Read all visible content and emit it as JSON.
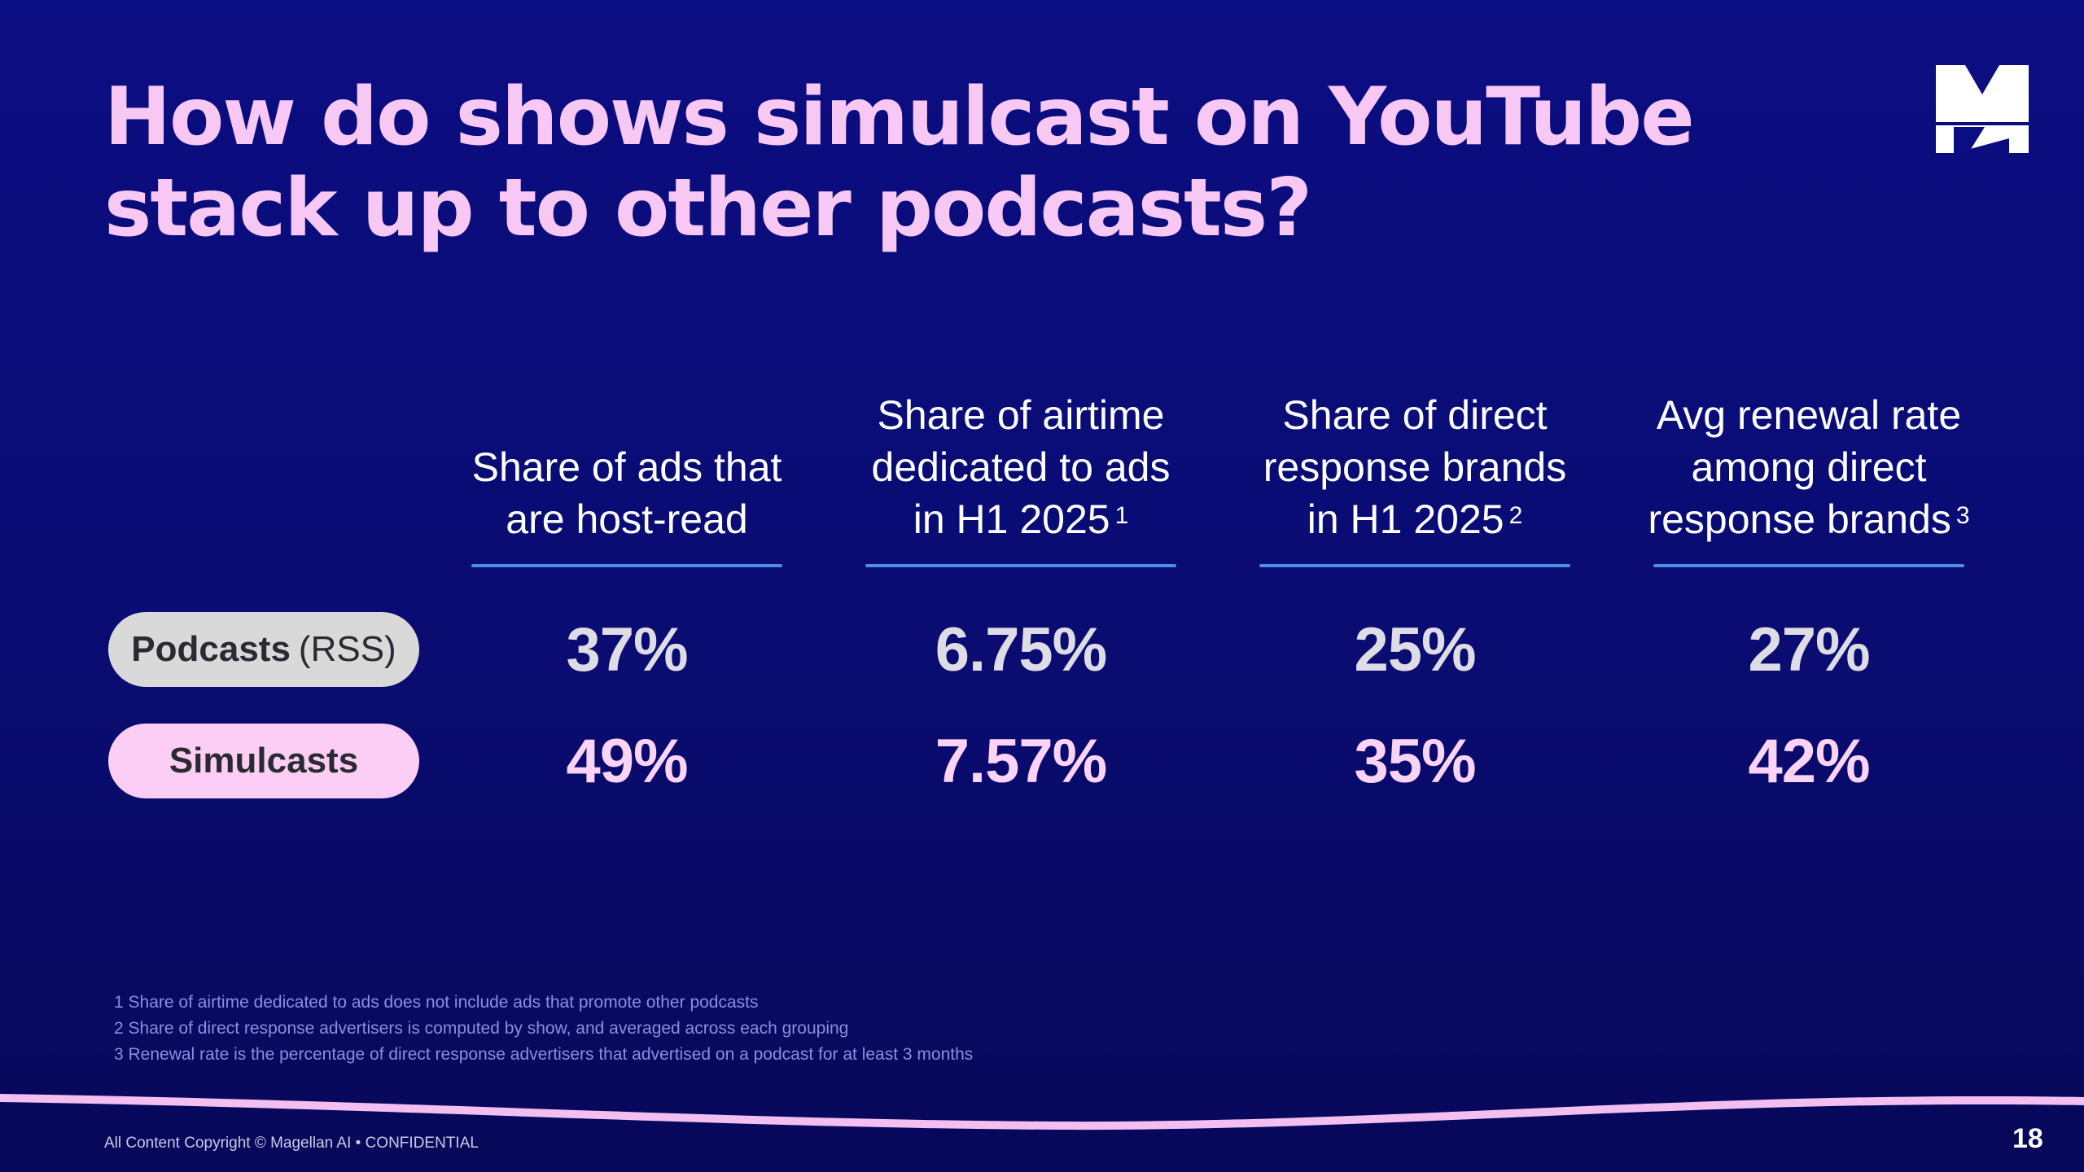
{
  "slide": {
    "title": "How do shows simulcast on YouTube stack up to other podcasts?",
    "page_number": "18",
    "copyright": "All Content Copyright © Magellan AI • CONFIDENTIAL"
  },
  "columns": [
    {
      "lines": [
        "Share of ads that",
        "are host-read"
      ],
      "sup": ""
    },
    {
      "lines": [
        "Share of airtime",
        "dedicated to ads",
        "in H1 2025"
      ],
      "sup": "1"
    },
    {
      "lines": [
        "Share of direct",
        "response brands",
        "in H1 2025"
      ],
      "sup": "2"
    },
    {
      "lines": [
        "Avg renewal rate",
        "among direct",
        "response brands"
      ],
      "sup": "3"
    }
  ],
  "rows": {
    "podcasts": {
      "label_main": "Podcasts",
      "label_suffix": "(RSS)",
      "values": [
        "37%",
        "6.75%",
        "25%",
        "27%"
      ]
    },
    "simulcasts": {
      "label_main": "Simulcasts",
      "values": [
        "49%",
        "7.57%",
        "35%",
        "42%"
      ]
    }
  },
  "footnotes": [
    "1 Share of airtime dedicated to ads does not include ads that promote other podcasts",
    "2 Share of direct response advertisers is computed by show, and averaged across each grouping",
    "3 Renewal rate is the percentage of direct response advertisers that advertised on a podcast for at least 3 months"
  ],
  "colors": {
    "background": "#0b0d82",
    "title": "#f8c8f4",
    "rule": "#4d8ee8",
    "pill_rss": "#d9d9d9",
    "pill_simulcast": "#fccdf5",
    "value_rss": "#dedde6",
    "value_simulcast": "#fbd3f6"
  },
  "logo": {
    "icon": "magellan-m-logo"
  }
}
